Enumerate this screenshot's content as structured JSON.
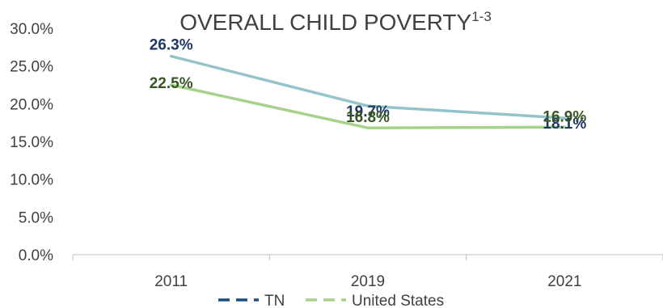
{
  "chart_data": {
    "type": "line",
    "title": "OVERALL CHILD POVERTY",
    "title_superscript": "1-3",
    "categories": [
      "2011",
      "2019",
      "2021"
    ],
    "ylim": [
      0,
      30
    ],
    "y_ticks": [
      "0.0%",
      "5.0%",
      "10.0%",
      "15.0%",
      "20.0%",
      "25.0%",
      "30.0%"
    ],
    "grid": false,
    "legend_position": "bottom",
    "series": [
      {
        "name": "TN",
        "values": [
          26.3,
          19.7,
          18.1
        ],
        "labels": [
          "26.3%",
          "19.7%",
          "18.1%"
        ],
        "color": "#93c4c9",
        "label_color": "#203864",
        "legend_color": "#1f4e79"
      },
      {
        "name": "United States",
        "values": [
          22.5,
          16.8,
          16.9
        ],
        "labels": [
          "22.5%",
          "16.8%",
          "16.9%"
        ],
        "color": "#a9d18e",
        "label_color": "#375623",
        "legend_color": "#a9d18e"
      }
    ]
  }
}
